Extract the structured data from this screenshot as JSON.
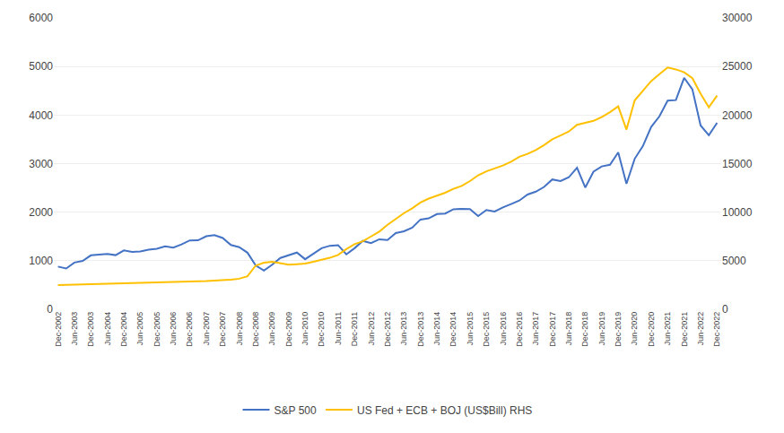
{
  "chart_data": {
    "type": "line",
    "categories": [
      "Dec-2002",
      null,
      "Jun-2003",
      null,
      "Dec-2003",
      null,
      "Jun-2004",
      null,
      "Dec-2004",
      null,
      "Jun-2005",
      null,
      "Dec-2005",
      null,
      "Jun-2006",
      null,
      "Dec-2006",
      null,
      "Jun-2007",
      null,
      "Dec-2007",
      null,
      "Jun-2008",
      null,
      "Dec-2008",
      null,
      "Jun-2009",
      null,
      "Dec-2009",
      null,
      "Jun-2010",
      null,
      "Dec-2010",
      null,
      "Jun-2011",
      null,
      "Dec-2011",
      null,
      "Jun-2012",
      null,
      "Dec-2012",
      null,
      "Jun-2013",
      null,
      "Dec-2013",
      null,
      "Jun-2014",
      null,
      "Dec-2014",
      null,
      "Jun-2015",
      null,
      "Dec-2015",
      null,
      "Jun-2016",
      null,
      "Dec-2016",
      null,
      "Jun-2017",
      null,
      "Dec-2017",
      null,
      "Jun-2018",
      null,
      "Dec-2018",
      null,
      "Jun-2019",
      null,
      "Dec-2019",
      null,
      "Jun-2020",
      null,
      "Dec-2020",
      null,
      "Jun-2021",
      null,
      "Dec-2021",
      null,
      "Jun-2022",
      null,
      "Dec-2022"
    ],
    "series": [
      {
        "name": "S&P 500",
        "color": "#4472C4",
        "axis": "y",
        "values": [
          879,
          841,
          963,
          996,
          1111,
          1126,
          1141,
          1115,
          1212,
          1181,
          1191,
          1228,
          1248,
          1295,
          1270,
          1336,
          1418,
          1421,
          1503,
          1527,
          1468,
          1323,
          1280,
          1166,
          903,
          798,
          919,
          1057,
          1115,
          1169,
          1031,
          1141,
          1258,
          1308,
          1321,
          1131,
          1258,
          1408,
          1362,
          1441,
          1426,
          1569,
          1606,
          1682,
          1848,
          1872,
          1960,
          1972,
          2059,
          2068,
          2063,
          1920,
          2044,
          2013,
          2099,
          2168,
          2239,
          2363,
          2423,
          2519,
          2674,
          2641,
          2718,
          2914,
          2507,
          2834,
          2942,
          2977,
          3231,
          2585,
          3100,
          3363,
          3756,
          3973,
          4298,
          4308,
          4766,
          4530,
          3785,
          3585,
          3840
        ]
      },
      {
        "name": "US Fed + ECB + BOJ (US$Bill) RHS",
        "color": "#FFC000",
        "axis": "y2",
        "values": [
          2500,
          2520,
          2540,
          2560,
          2580,
          2600,
          2620,
          2640,
          2660,
          2680,
          2700,
          2720,
          2740,
          2760,
          2780,
          2800,
          2820,
          2850,
          2900,
          2960,
          3000,
          3050,
          3150,
          3400,
          4500,
          4800,
          4900,
          4750,
          4600,
          4650,
          4700,
          4900,
          5100,
          5300,
          5600,
          6200,
          6700,
          7000,
          7500,
          8000,
          8700,
          9300,
          9900,
          10400,
          11000,
          11400,
          11700,
          12000,
          12400,
          12700,
          13200,
          13800,
          14200,
          14500,
          14800,
          15200,
          15700,
          16000,
          16400,
          16900,
          17500,
          17900,
          18300,
          19000,
          19200,
          19400,
          19800,
          20300,
          20900,
          18500,
          21500,
          22500,
          23500,
          24200,
          24900,
          24700,
          24400,
          23800,
          22200,
          20800,
          22000
        ]
      }
    ],
    "ylim": [
      0,
      6000
    ],
    "yticks": [
      0,
      1000,
      2000,
      3000,
      4000,
      5000,
      6000
    ],
    "y2lim": [
      0,
      30000
    ],
    "y2ticks": [
      0,
      5000,
      10000,
      15000,
      20000,
      25000,
      30000
    ],
    "grid": true,
    "legend": "bottom"
  }
}
